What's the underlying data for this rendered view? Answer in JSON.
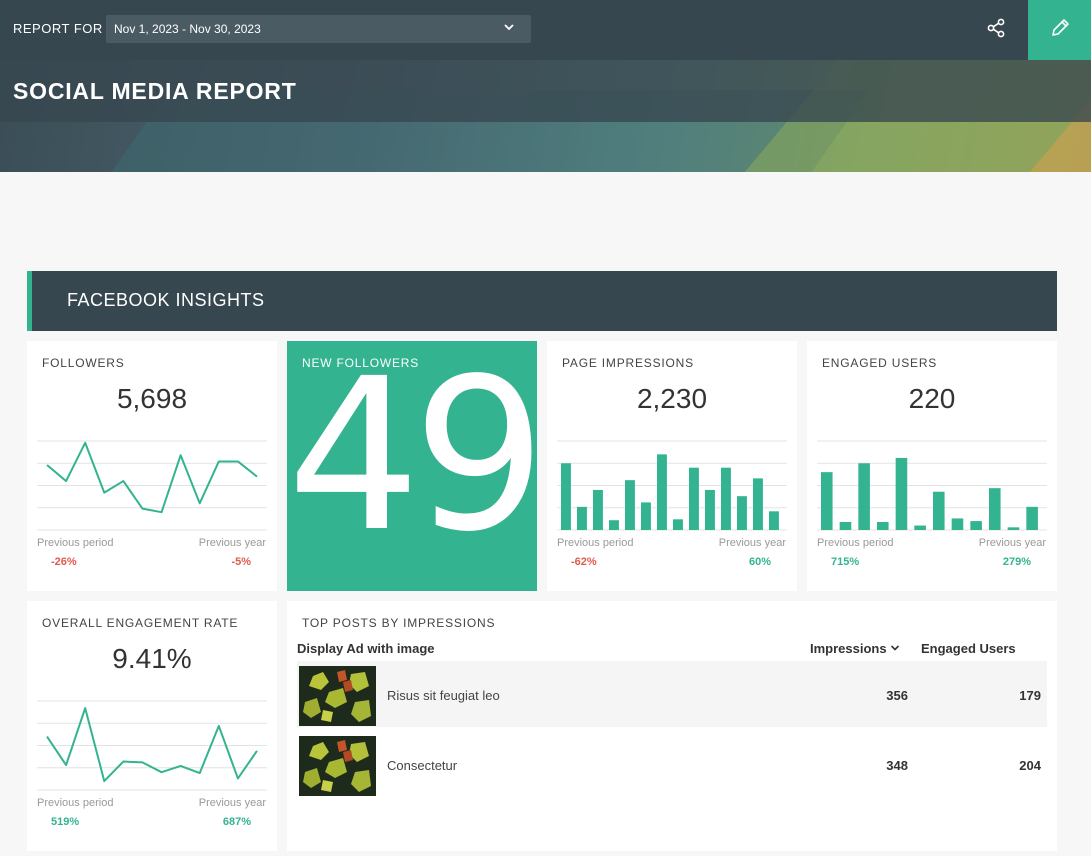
{
  "header": {
    "report_for_label": "REPORT FOR",
    "date_range": "Nov 1, 2023 - Nov 30, 2023",
    "title": "SOCIAL MEDIA REPORT",
    "colors": {
      "dark": "#37474f",
      "accent": "#34b391"
    }
  },
  "section": {
    "title": "FACEBOOK INSIGHTS"
  },
  "cards": {
    "followers": {
      "label": "FOLLOWERS",
      "value": "5,698",
      "prev_period_label": "Previous period",
      "prev_period_value": "-26%",
      "prev_year_label": "Previous year",
      "prev_year_value": "-5%"
    },
    "new_followers": {
      "label": "NEW FOLLOWERS",
      "value": "49"
    },
    "page_impressions": {
      "label": "PAGE IMPRESSIONS",
      "value": "2,230",
      "prev_period_label": "Previous period",
      "prev_period_value": "-62%",
      "prev_year_label": "Previous year",
      "prev_year_value": "60%"
    },
    "engaged_users": {
      "label": "ENGAGED USERS",
      "value": "220",
      "prev_period_label": "Previous period",
      "prev_period_value": "715%",
      "prev_year_label": "Previous year",
      "prev_year_value": "279%"
    },
    "engagement_rate": {
      "label": "OVERALL ENGAGEMENT RATE",
      "value": "9.41%",
      "prev_period_label": "Previous period",
      "prev_period_value": "519%",
      "prev_year_label": "Previous year",
      "prev_year_value": "687%"
    }
  },
  "top_posts": {
    "title": "TOP POSTS BY IMPRESSIONS",
    "col_post": "Display Ad with image",
    "col_impressions": "Impressions",
    "col_engaged": "Engaged Users",
    "rows": [
      {
        "title": "Risus sit feugiat leo",
        "impressions": "356",
        "engaged": "179"
      },
      {
        "title": "Consectetur",
        "impressions": "348",
        "engaged": "204"
      }
    ]
  },
  "chart_data": [
    {
      "type": "line",
      "name": "followers_trend",
      "values": [
        7.3,
        5.5,
        9.8,
        4.2,
        5.5,
        2.4,
        2.0,
        8.4,
        3.0,
        7.7,
        7.7,
        6.0
      ],
      "ylim": [
        0,
        10
      ]
    },
    {
      "type": "bar",
      "name": "page_impressions_trend",
      "values": [
        7.5,
        2.6,
        4.5,
        1.1,
        5.6,
        3.1,
        8.5,
        1.2,
        7.0,
        4.5,
        7.0,
        3.8,
        5.8,
        2.1
      ],
      "ylim": [
        0,
        10
      ]
    },
    {
      "type": "bar",
      "name": "engaged_users_trend",
      "values": [
        6.5,
        0.9,
        7.5,
        0.9,
        8.1,
        0.5,
        4.3,
        1.3,
        1.0,
        4.7,
        0.3,
        2.6
      ],
      "ylim": [
        0,
        10
      ]
    },
    {
      "type": "line",
      "name": "engagement_rate_trend",
      "values": [
        6.0,
        2.8,
        9.2,
        1.0,
        3.2,
        3.1,
        2.0,
        2.7,
        1.9,
        7.2,
        1.3,
        4.4
      ],
      "ylim": [
        0,
        10
      ]
    }
  ]
}
